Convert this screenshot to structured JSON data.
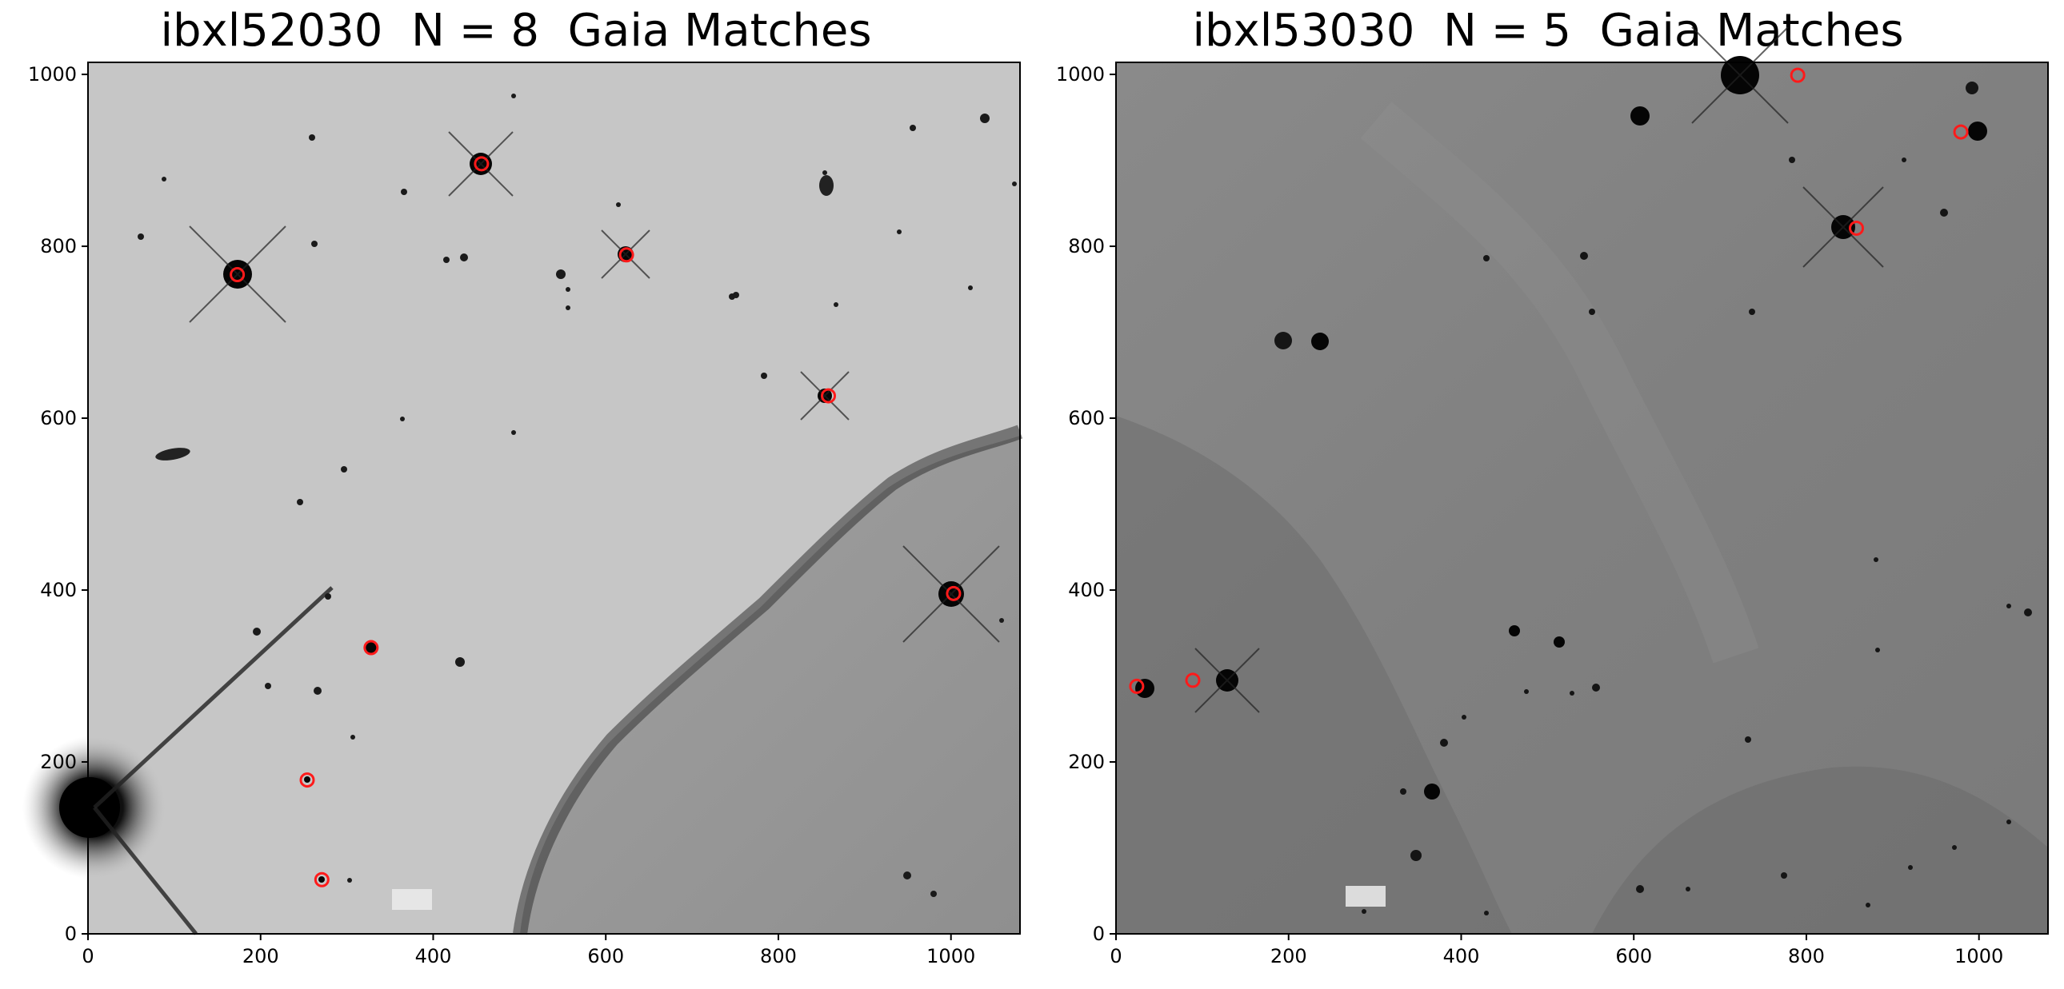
{
  "figure": {
    "panels": [
      {
        "title": "ibxl52030  N = 8  Gaia Matches",
        "xlim": [
          0,
          1080
        ],
        "ylim": [
          0,
          1014
        ],
        "x_ticks": [
          0,
          200,
          400,
          600,
          800,
          1000
        ],
        "y_ticks": [
          0,
          200,
          400,
          600,
          800,
          1000
        ],
        "background": "light",
        "gaia_matches": [
          {
            "x": 173,
            "y": 767
          },
          {
            "x": 456,
            "y": 896
          },
          {
            "x": 624,
            "y": 790
          },
          {
            "x": 858,
            "y": 626
          },
          {
            "x": 1003,
            "y": 396
          },
          {
            "x": 328,
            "y": 333
          },
          {
            "x": 254,
            "y": 179
          },
          {
            "x": 271,
            "y": 63
          }
        ]
      },
      {
        "title": "ibxl53030  N = 5  Gaia Matches",
        "xlim": [
          0,
          1080
        ],
        "ylim": [
          0,
          1014
        ],
        "x_ticks": [
          0,
          200,
          400,
          600,
          800,
          1000
        ],
        "y_ticks": [
          0,
          200,
          400,
          600,
          800,
          1000
        ],
        "background": "dark",
        "gaia_matches": [
          {
            "x": 790,
            "y": 999
          },
          {
            "x": 979,
            "y": 933
          },
          {
            "x": 858,
            "y": 821
          },
          {
            "x": 89,
            "y": 295
          },
          {
            "x": 24,
            "y": 288
          }
        ]
      }
    ]
  },
  "colors": {
    "marker": "#ff1a1a",
    "light_sky": "#c4c4c4",
    "dark_sky": "#7e7e7e",
    "nebula": "#8a8a8a"
  }
}
